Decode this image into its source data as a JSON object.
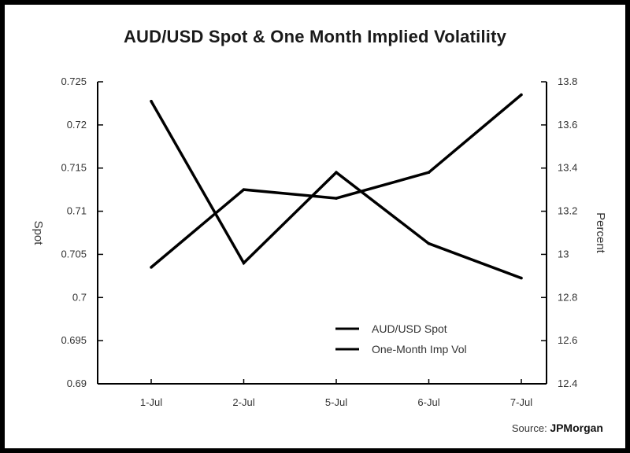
{
  "chart_data": {
    "type": "line",
    "title": "AUD/USD Spot & One Month Implied Volatility",
    "categories": [
      "1-Jul",
      "2-Jul",
      "5-Jul",
      "6-Jul",
      "7-Jul"
    ],
    "y_left": {
      "label": "Spot",
      "range": [
        0.69,
        0.725
      ],
      "ticks": [
        0.725,
        0.72,
        0.715,
        0.71,
        0.705,
        0.7,
        0.695,
        0.69
      ],
      "tick_labels": [
        "0.725",
        "0.72",
        "0.715",
        "0.71",
        "0.705",
        "0.7",
        "0.695",
        "0.69"
      ]
    },
    "y_right": {
      "label": "Percent",
      "range": [
        12.4,
        13.8
      ],
      "ticks": [
        13.8,
        13.6,
        13.4,
        13.2,
        13.0,
        12.8,
        12.6,
        12.4
      ],
      "tick_labels": [
        "13.8",
        "13.6",
        "13.4",
        "13.2",
        "13",
        "12.8",
        "12.6",
        "12.4"
      ]
    },
    "series": [
      {
        "name": "AUD/USD Spot",
        "axis": "left",
        "values": [
          0.7035,
          0.7125,
          0.7115,
          0.7145,
          0.7235
        ]
      },
      {
        "name": "One-Month Imp Vol",
        "axis": "right",
        "values": [
          13.71,
          12.96,
          13.38,
          13.05,
          12.89
        ]
      }
    ],
    "legend_position": "bottom-right",
    "grid": false
  },
  "source": {
    "prefix": "Source:",
    "brand": "JPMorgan"
  }
}
